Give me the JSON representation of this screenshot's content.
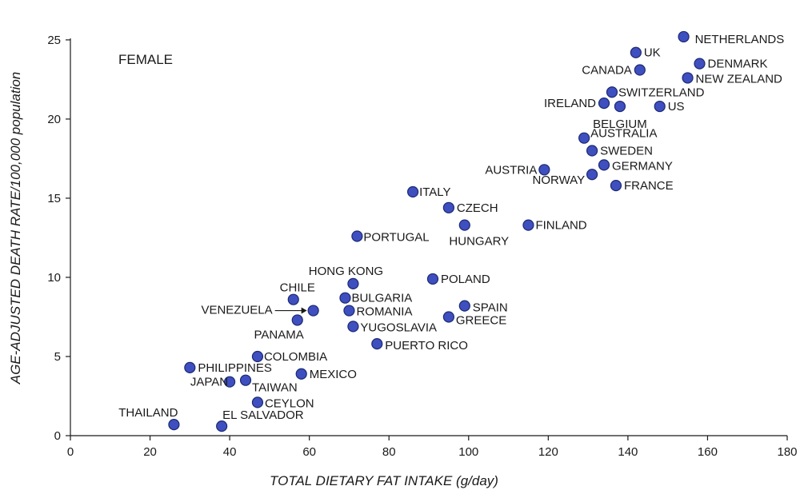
{
  "chart_data": {
    "type": "scatter",
    "panel_label": "FEMALE",
    "xlabel": "TOTAL DIETARY FAT INTAKE (g/day)",
    "ylabel": "AGE-ADJUSTED DEATH RATE/100,000 population",
    "xlim": [
      0,
      180
    ],
    "ylim": [
      0,
      25.5
    ],
    "x_ticks": [
      "0",
      "20",
      "40",
      "60",
      "80",
      "100",
      "120",
      "140",
      "160",
      "180"
    ],
    "y_ticks": [
      "0",
      "5",
      "10",
      "15",
      "20",
      "25"
    ],
    "grid": false,
    "marker_color": "#3f4fc0",
    "points": [
      {
        "label": "NETHERLANDS",
        "x": 154,
        "y": 25.2
      },
      {
        "label": "UK",
        "x": 142,
        "y": 24.2
      },
      {
        "label": "CANADA",
        "x": 143,
        "y": 23.1
      },
      {
        "label": "DENMARK",
        "x": 158,
        "y": 23.5
      },
      {
        "label": "NEW ZEALAND",
        "x": 155,
        "y": 22.6
      },
      {
        "label": "SWITZERLAND",
        "x": 136,
        "y": 21.7
      },
      {
        "label": "IRELAND",
        "x": 134,
        "y": 21.0
      },
      {
        "label": "BELGIUM",
        "x": 138,
        "y": 20.8
      },
      {
        "label": "US",
        "x": 148,
        "y": 20.8
      },
      {
        "label": "AUSTRALIA",
        "x": 129,
        "y": 18.8
      },
      {
        "label": "SWEDEN",
        "x": 131,
        "y": 18.0
      },
      {
        "label": "GERMANY",
        "x": 134,
        "y": 17.1
      },
      {
        "label": "AUSTRIA",
        "x": 119,
        "y": 16.8
      },
      {
        "label": "NORWAY",
        "x": 131,
        "y": 16.5
      },
      {
        "label": "FRANCE",
        "x": 137,
        "y": 15.8
      },
      {
        "label": "ITALY",
        "x": 86,
        "y": 15.4
      },
      {
        "label": "CZECH",
        "x": 95,
        "y": 14.4
      },
      {
        "label": "HUNGARY",
        "x": 99,
        "y": 13.3
      },
      {
        "label": "FINLAND",
        "x": 115,
        "y": 13.3
      },
      {
        "label": "PORTUGAL",
        "x": 72,
        "y": 12.6
      },
      {
        "label": "HONG KONG",
        "x": 71,
        "y": 9.6
      },
      {
        "label": "POLAND",
        "x": 91,
        "y": 9.9
      },
      {
        "label": "CHILE",
        "x": 56,
        "y": 8.6
      },
      {
        "label": "BULGARIA",
        "x": 69,
        "y": 8.7
      },
      {
        "label": "VENEZUELA",
        "x": 61,
        "y": 7.9
      },
      {
        "label": "ROMANIA",
        "x": 70,
        "y": 7.9
      },
      {
        "label": "SPAIN",
        "x": 99,
        "y": 8.2
      },
      {
        "label": "PANAMA",
        "x": 57,
        "y": 7.3
      },
      {
        "label": "GREECE",
        "x": 95,
        "y": 7.5
      },
      {
        "label": "YUGOSLAVIA",
        "x": 71,
        "y": 6.9
      },
      {
        "label": "PUERTO RICO",
        "x": 77,
        "y": 5.8
      },
      {
        "label": "COLOMBIA",
        "x": 47,
        "y": 5.0
      },
      {
        "label": "PHILIPPINES",
        "x": 30,
        "y": 4.3
      },
      {
        "label": "MEXICO",
        "x": 58,
        "y": 3.9
      },
      {
        "label": "JAPAN",
        "x": 40,
        "y": 3.4
      },
      {
        "label": "TAIWAN",
        "x": 44,
        "y": 3.5
      },
      {
        "label": "CEYLON",
        "x": 47,
        "y": 2.1
      },
      {
        "label": "THAILAND",
        "x": 26,
        "y": 0.7
      },
      {
        "label": "EL SALVADOR",
        "x": 38,
        "y": 0.6
      }
    ]
  }
}
